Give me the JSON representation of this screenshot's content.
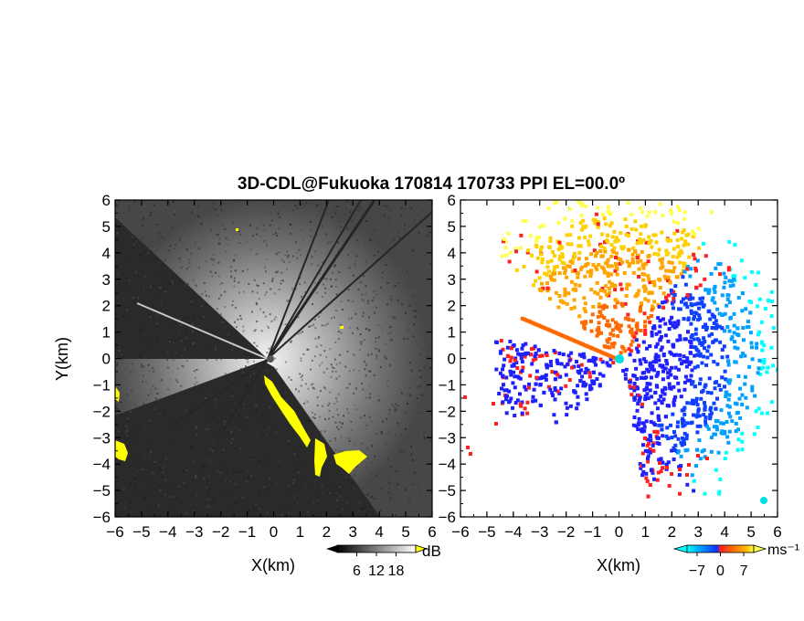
{
  "chart_data": [
    {
      "type": "heatmap",
      "title": "3D-CDL@Fukuoka 170814 170733 PPI EL=00.0º",
      "quantity": "reflectivity (SNR)",
      "xlabel": "X(km)",
      "ylabel": "Y(km)",
      "xlim": [
        -6,
        6
      ],
      "ylim": [
        -6,
        6
      ],
      "xticks": [
        -6,
        -5,
        -4,
        -3,
        -2,
        -1,
        0,
        1,
        2,
        3,
        4,
        5,
        6
      ],
      "yticks": [
        -6,
        -5,
        -4,
        -3,
        -2,
        -1,
        0,
        1,
        2,
        3,
        4,
        5,
        6
      ],
      "colorbar": {
        "unit": "dB",
        "ticks": [
          6,
          12,
          18
        ],
        "colormap": "grayscale",
        "saturated_color": "#ffff00"
      }
    },
    {
      "type": "heatmap",
      "quantity": "doppler velocity",
      "xlabel": "X(km)",
      "ylabel": "",
      "xlim": [
        -6,
        6
      ],
      "ylim": [
        -6,
        6
      ],
      "xticks": [
        -6,
        -5,
        -4,
        -3,
        -2,
        -1,
        0,
        1,
        2,
        3,
        4,
        5,
        6
      ],
      "yticks": [
        -6,
        -5,
        -4,
        -3,
        -2,
        -1,
        0,
        1,
        2,
        3,
        4,
        5,
        6
      ],
      "colorbar": {
        "unit": "ms⁻¹",
        "ticks": [
          -7,
          0,
          7
        ],
        "colormap": "cyan-blue-red-orange-yellow"
      }
    }
  ],
  "colors": {
    "yellow": "#ffff00",
    "velocity_scale": [
      "#00ffff",
      "#00a0ff",
      "#1040ff",
      "#2020ff",
      "#ff2020",
      "#ff6a00",
      "#ffa500",
      "#ffd000",
      "#ffff50"
    ]
  }
}
